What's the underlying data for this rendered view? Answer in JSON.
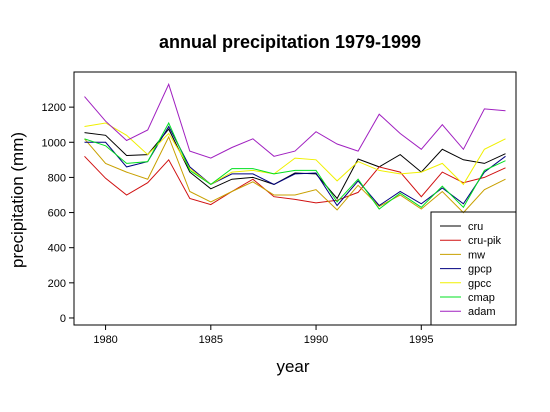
{
  "chart_data": {
    "type": "line",
    "title": "annual precipitation 1979-1999",
    "xlabel": "year",
    "ylabel": "precipitation (mm)",
    "xlim": [
      1978.5,
      1999.5
    ],
    "ylim": [
      -40,
      1400
    ],
    "xticks": [
      1980,
      1985,
      1990,
      1995
    ],
    "yticks": [
      0,
      200,
      400,
      600,
      800,
      1000,
      1200
    ],
    "grid": false,
    "legend_position": "bottom-right",
    "x": [
      1979,
      1980,
      1981,
      1982,
      1983,
      1984,
      1985,
      1986,
      1987,
      1988,
      1989,
      1990,
      1991,
      1992,
      1993,
      1994,
      1995,
      1996,
      1997,
      1998,
      1999
    ],
    "series": [
      {
        "name": "cru",
        "color": "#000000",
        "values": [
          1055,
          1040,
          925,
          930,
          1075,
          830,
          735,
          790,
          800,
          760,
          825,
          820,
          680,
          905,
          860,
          930,
          830,
          960,
          900,
          880,
          935
        ]
      },
      {
        "name": "cru-pik",
        "color": "#d01010",
        "values": [
          920,
          795,
          700,
          770,
          900,
          680,
          645,
          720,
          790,
          690,
          675,
          655,
          670,
          715,
          860,
          830,
          690,
          830,
          770,
          800,
          855
        ]
      },
      {
        "name": "mw",
        "color": "#c8a000",
        "values": [
          1020,
          880,
          830,
          790,
          1030,
          720,
          660,
          720,
          775,
          700,
          700,
          730,
          615,
          755,
          635,
          700,
          620,
          720,
          600,
          730,
          790
        ]
      },
      {
        "name": "gpcp",
        "color": "#000080",
        "values": [
          1000,
          1000,
          860,
          890,
          1090,
          860,
          760,
          820,
          820,
          760,
          820,
          825,
          640,
          780,
          640,
          720,
          650,
          740,
          650,
          830,
          920
        ]
      },
      {
        "name": "gpcc",
        "color": "#f0f000",
        "values": [
          1090,
          1110,
          1040,
          930,
          1050,
          850,
          760,
          830,
          840,
          820,
          910,
          900,
          780,
          890,
          840,
          820,
          830,
          880,
          760,
          960,
          1020
        ]
      },
      {
        "name": "cmap",
        "color": "#00e020",
        "values": [
          1020,
          980,
          880,
          890,
          1110,
          840,
          760,
          850,
          850,
          820,
          840,
          840,
          660,
          790,
          620,
          710,
          630,
          750,
          630,
          840,
          895
        ]
      },
      {
        "name": "adam",
        "color": "#a020c0",
        "values": [
          1260,
          1120,
          1010,
          1070,
          1330,
          950,
          910,
          970,
          1020,
          920,
          950,
          1060,
          990,
          950,
          1160,
          1050,
          960,
          1100,
          960,
          1190,
          1180
        ]
      }
    ]
  }
}
